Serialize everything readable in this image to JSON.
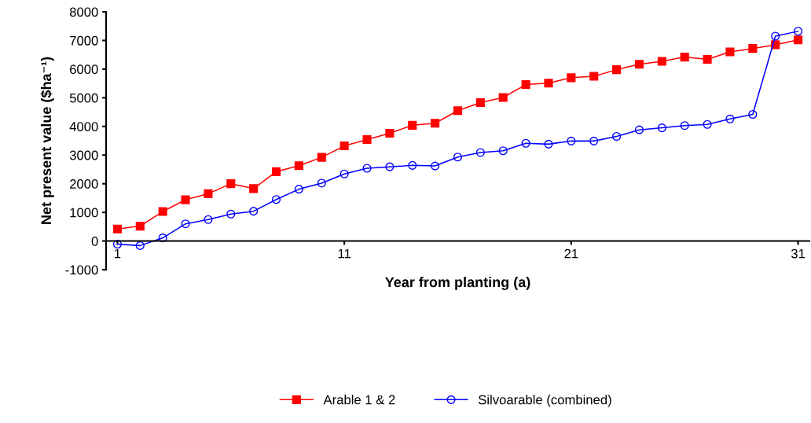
{
  "chart_data": {
    "type": "line",
    "x": [
      1,
      2,
      3,
      4,
      5,
      6,
      7,
      8,
      9,
      10,
      11,
      12,
      13,
      14,
      15,
      16,
      17,
      18,
      19,
      20,
      21,
      22,
      23,
      24,
      25,
      26,
      27,
      28,
      29,
      30,
      31
    ],
    "xlabel": "Year from planting (a)",
    "ylabel": "Net present value ($ha⁻¹)",
    "xlim": [
      0.5,
      31.5
    ],
    "xticks": [
      1,
      11,
      21,
      31
    ],
    "ylim": [
      -1000,
      8000
    ],
    "yticks": [
      -1000,
      0,
      1000,
      2000,
      3000,
      4000,
      5000,
      6000,
      7000,
      8000
    ],
    "grid": false,
    "legend": "bottom",
    "series": [
      {
        "name": "Arable 1 & 2",
        "color": "#ff0000",
        "marker": "square",
        "values": [
          420,
          520,
          1030,
          1440,
          1650,
          2000,
          1830,
          2420,
          2630,
          2920,
          3320,
          3540,
          3760,
          4040,
          4110,
          4550,
          4830,
          5010,
          5460,
          5510,
          5700,
          5750,
          5980,
          6170,
          6270,
          6420,
          6340,
          6600,
          6720,
          6850,
          7020
        ]
      },
      {
        "name": "Silvoarable (combined)",
        "color": "#0000ff",
        "marker": "circle",
        "values": [
          -110,
          -160,
          110,
          600,
          750,
          940,
          1040,
          1450,
          1810,
          2020,
          2340,
          2540,
          2590,
          2640,
          2620,
          2930,
          3090,
          3150,
          3410,
          3380,
          3490,
          3490,
          3650,
          3880,
          3950,
          4030,
          4070,
          4260,
          4420,
          7150,
          7320
        ]
      }
    ]
  }
}
